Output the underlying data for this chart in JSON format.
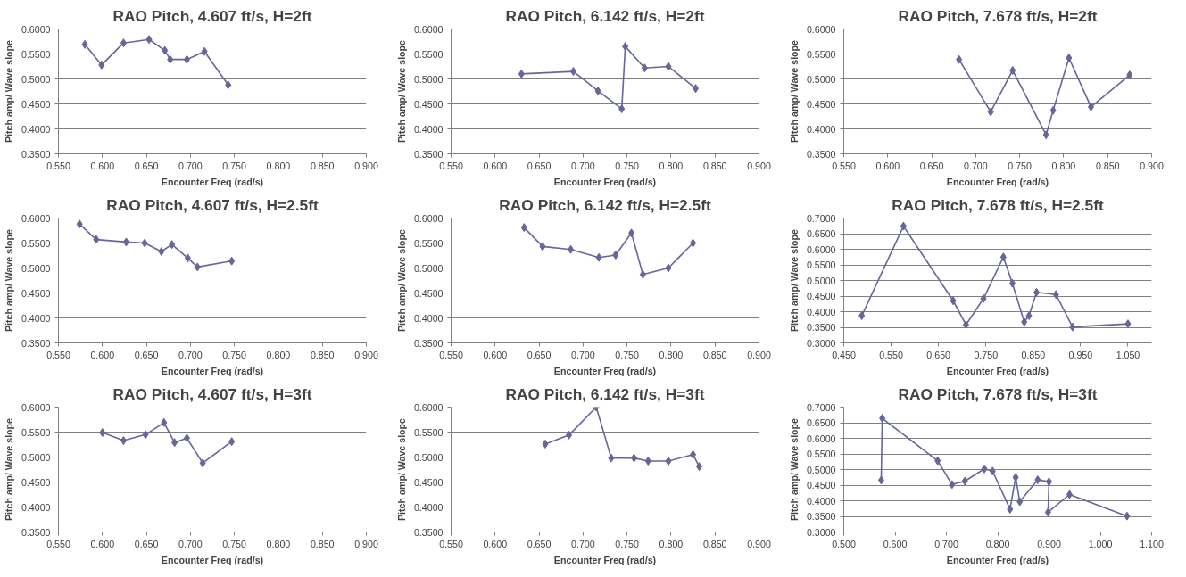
{
  "chart_data": [
    {
      "type": "line",
      "title": "RAO Pitch, 4.607 ft/s, H=2ft",
      "xlabel": "Encounter Freq (rad/s)",
      "ylabel": "Pitch amp/ Wave slope",
      "marker": "diamond",
      "grid": "y",
      "xlim": [
        0.55,
        0.9
      ],
      "ylim": [
        0.35,
        0.6
      ],
      "xticks": [
        {
          "value": 0.55,
          "label": "0.550"
        },
        {
          "value": 0.6,
          "label": "0.600"
        },
        {
          "value": 0.65,
          "label": "0.650"
        },
        {
          "value": 0.7,
          "label": "0.700"
        },
        {
          "value": 0.75,
          "label": "0.750"
        },
        {
          "value": 0.8,
          "label": "0.800"
        },
        {
          "value": 0.85,
          "label": "0.850"
        },
        {
          "value": 0.9,
          "label": "0.900"
        }
      ],
      "yticks": [
        {
          "value": 0.35,
          "label": "0.3500"
        },
        {
          "value": 0.4,
          "label": "0.4000"
        },
        {
          "value": 0.45,
          "label": "0.4500"
        },
        {
          "value": 0.5,
          "label": "0.5000"
        },
        {
          "value": 0.55,
          "label": "0.5500"
        },
        {
          "value": 0.6,
          "label": "0.6000"
        }
      ],
      "x": [
        0.58,
        0.599,
        0.624,
        0.653,
        0.671,
        0.677,
        0.696,
        0.716,
        0.743
      ],
      "series": [
        {
          "color": "#666699",
          "values": [
            0.569,
            0.528,
            0.572,
            0.579,
            0.557,
            0.539,
            0.539,
            0.555,
            0.488
          ]
        }
      ]
    },
    {
      "type": "line",
      "title": "RAO Pitch, 6.142 ft/s, H=2ft",
      "xlabel": "Encounter Freq (rad/s)",
      "ylabel": "Pitch amp/ Wave slope",
      "marker": "diamond",
      "grid": "y",
      "xlim": [
        0.55,
        0.9
      ],
      "ylim": [
        0.35,
        0.6
      ],
      "xticks": [
        {
          "value": 0.55,
          "label": "0.550"
        },
        {
          "value": 0.6,
          "label": "0.600"
        },
        {
          "value": 0.65,
          "label": "0.650"
        },
        {
          "value": 0.7,
          "label": "0.700"
        },
        {
          "value": 0.75,
          "label": "0.750"
        },
        {
          "value": 0.8,
          "label": "0.800"
        },
        {
          "value": 0.85,
          "label": "0.850"
        },
        {
          "value": 0.9,
          "label": "0.900"
        }
      ],
      "yticks": [
        {
          "value": 0.35,
          "label": "0.3500"
        },
        {
          "value": 0.4,
          "label": "0.4000"
        },
        {
          "value": 0.45,
          "label": "0.4500"
        },
        {
          "value": 0.5,
          "label": "0.5000"
        },
        {
          "value": 0.55,
          "label": "0.5500"
        },
        {
          "value": 0.6,
          "label": "0.6000"
        }
      ],
      "x": [
        0.63,
        0.689,
        0.717,
        0.744,
        0.748,
        0.77,
        0.797,
        0.828
      ],
      "series": [
        {
          "color": "#666699",
          "values": [
            0.51,
            0.515,
            0.476,
            0.44,
            0.565,
            0.522,
            0.525,
            0.481
          ]
        }
      ]
    },
    {
      "type": "line",
      "title": "RAO Pitch, 7.678 ft/s, H=2ft",
      "xlabel": "Encounter Freq (rad/s)",
      "ylabel": "Pitch amp/ Wave slope",
      "marker": "diamond",
      "grid": "y",
      "xlim": [
        0.55,
        0.9
      ],
      "ylim": [
        0.35,
        0.6
      ],
      "xticks": [
        {
          "value": 0.55,
          "label": "0.550"
        },
        {
          "value": 0.6,
          "label": "0.600"
        },
        {
          "value": 0.65,
          "label": "0.650"
        },
        {
          "value": 0.7,
          "label": "0.700"
        },
        {
          "value": 0.75,
          "label": "0.750"
        },
        {
          "value": 0.8,
          "label": "0.800"
        },
        {
          "value": 0.85,
          "label": "0.850"
        },
        {
          "value": 0.9,
          "label": "0.900"
        }
      ],
      "yticks": [
        {
          "value": 0.35,
          "label": "0.3500"
        },
        {
          "value": 0.4,
          "label": "0.4000"
        },
        {
          "value": 0.45,
          "label": "0.4500"
        },
        {
          "value": 0.5,
          "label": "0.5000"
        },
        {
          "value": 0.55,
          "label": "0.5500"
        },
        {
          "value": 0.6,
          "label": "0.6000"
        }
      ],
      "x": [
        0.681,
        0.717,
        0.742,
        0.78,
        0.788,
        0.806,
        0.831,
        0.875
      ],
      "series": [
        {
          "color": "#666699",
          "values": [
            0.539,
            0.434,
            0.517,
            0.388,
            0.437,
            0.542,
            0.444,
            0.508
          ]
        }
      ]
    },
    {
      "type": "line",
      "title": "RAO Pitch, 4.607 ft/s, H=2.5ft",
      "xlabel": "Encounter Freq (rad/s)",
      "ylabel": "Pitch amp/ Wave slope",
      "marker": "diamond",
      "grid": "y",
      "xlim": [
        0.55,
        0.9
      ],
      "ylim": [
        0.35,
        0.6
      ],
      "xticks": [
        {
          "value": 0.55,
          "label": "0.550"
        },
        {
          "value": 0.6,
          "label": "0.600"
        },
        {
          "value": 0.65,
          "label": "0.650"
        },
        {
          "value": 0.7,
          "label": "0.700"
        },
        {
          "value": 0.75,
          "label": "0.750"
        },
        {
          "value": 0.8,
          "label": "0.800"
        },
        {
          "value": 0.85,
          "label": "0.850"
        },
        {
          "value": 0.9,
          "label": "0.900"
        }
      ],
      "yticks": [
        {
          "value": 0.35,
          "label": "0.3500"
        },
        {
          "value": 0.4,
          "label": "0.4000"
        },
        {
          "value": 0.45,
          "label": "0.4500"
        },
        {
          "value": 0.5,
          "label": "0.5000"
        },
        {
          "value": 0.55,
          "label": "0.5500"
        },
        {
          "value": 0.6,
          "label": "0.6000"
        }
      ],
      "x": [
        0.574,
        0.593,
        0.627,
        0.648,
        0.667,
        0.679,
        0.697,
        0.708,
        0.747
      ],
      "series": [
        {
          "color": "#666699",
          "values": [
            0.588,
            0.557,
            0.552,
            0.55,
            0.533,
            0.547,
            0.52,
            0.502,
            0.514
          ]
        }
      ]
    },
    {
      "type": "line",
      "title": "RAO Pitch, 6.142 ft/s, H=2.5ft",
      "xlabel": "Encounter Freq (rad/s)",
      "ylabel": "Pitch amp/ Wave slope",
      "marker": "diamond",
      "grid": "y",
      "xlim": [
        0.55,
        0.9
      ],
      "ylim": [
        0.35,
        0.6
      ],
      "xticks": [
        {
          "value": 0.55,
          "label": "0.550"
        },
        {
          "value": 0.6,
          "label": "0.600"
        },
        {
          "value": 0.65,
          "label": "0.650"
        },
        {
          "value": 0.7,
          "label": "0.700"
        },
        {
          "value": 0.75,
          "label": "0.750"
        },
        {
          "value": 0.8,
          "label": "0.800"
        },
        {
          "value": 0.85,
          "label": "0.850"
        },
        {
          "value": 0.9,
          "label": "0.900"
        }
      ],
      "yticks": [
        {
          "value": 0.35,
          "label": "0.3500"
        },
        {
          "value": 0.4,
          "label": "0.4000"
        },
        {
          "value": 0.45,
          "label": "0.4500"
        },
        {
          "value": 0.5,
          "label": "0.5000"
        },
        {
          "value": 0.55,
          "label": "0.5500"
        },
        {
          "value": 0.6,
          "label": "0.6000"
        }
      ],
      "x": [
        0.633,
        0.654,
        0.686,
        0.718,
        0.737,
        0.755,
        0.768,
        0.797,
        0.825
      ],
      "series": [
        {
          "color": "#666699",
          "values": [
            0.581,
            0.543,
            0.537,
            0.521,
            0.526,
            0.57,
            0.487,
            0.5,
            0.55
          ]
        }
      ]
    },
    {
      "type": "line",
      "title": "RAO Pitch, 7.678 ft/s, H=2.5ft",
      "xlabel": "Encounter Freq (rad/s)",
      "ylabel": "Pitch amp/ Wave slope",
      "marker": "diamond",
      "grid": "y",
      "xlim": [
        0.45,
        1.1
      ],
      "ylim": [
        0.3,
        0.7
      ],
      "xticks": [
        {
          "value": 0.45,
          "label": "0.450"
        },
        {
          "value": 0.55,
          "label": "0.550"
        },
        {
          "value": 0.65,
          "label": "0.650"
        },
        {
          "value": 0.75,
          "label": "0.750"
        },
        {
          "value": 0.85,
          "label": "0.850"
        },
        {
          "value": 0.95,
          "label": "0.950"
        },
        {
          "value": 1.05,
          "label": "1.050"
        }
      ],
      "yticks": [
        {
          "value": 0.3,
          "label": "0.3000"
        },
        {
          "value": 0.35,
          "label": "0.3500"
        },
        {
          "value": 0.4,
          "label": "0.4000"
        },
        {
          "value": 0.45,
          "label": "0.4500"
        },
        {
          "value": 0.5,
          "label": "0.5000"
        },
        {
          "value": 0.55,
          "label": "0.5500"
        },
        {
          "value": 0.6,
          "label": "0.6000"
        },
        {
          "value": 0.65,
          "label": "0.6500"
        },
        {
          "value": 0.7,
          "label": "0.7000"
        }
      ],
      "x": [
        0.488,
        0.576,
        0.681,
        0.708,
        0.745,
        0.787,
        0.806,
        0.831,
        0.841,
        0.857,
        0.898,
        0.933,
        1.05
      ],
      "series": [
        {
          "color": "#666699",
          "values": [
            0.387,
            0.674,
            0.435,
            0.358,
            0.442,
            0.575,
            0.491,
            0.367,
            0.387,
            0.462,
            0.455,
            0.351,
            0.361
          ]
        }
      ]
    },
    {
      "type": "line",
      "title": "RAO Pitch, 4.607 ft/s, H=3ft",
      "xlabel": "Encounter Freq (rad/s)",
      "ylabel": "Pitch amp/ Wave slope",
      "marker": "diamond",
      "grid": "y",
      "xlim": [
        0.55,
        0.9
      ],
      "ylim": [
        0.35,
        0.6
      ],
      "xticks": [
        {
          "value": 0.55,
          "label": "0.550"
        },
        {
          "value": 0.6,
          "label": "0.600"
        },
        {
          "value": 0.65,
          "label": "0.650"
        },
        {
          "value": 0.7,
          "label": "0.700"
        },
        {
          "value": 0.75,
          "label": "0.750"
        },
        {
          "value": 0.8,
          "label": "0.800"
        },
        {
          "value": 0.85,
          "label": "0.850"
        },
        {
          "value": 0.9,
          "label": "0.900"
        }
      ],
      "yticks": [
        {
          "value": 0.35,
          "label": "0.3500"
        },
        {
          "value": 0.4,
          "label": "0.4000"
        },
        {
          "value": 0.45,
          "label": "0.4500"
        },
        {
          "value": 0.5,
          "label": "0.5000"
        },
        {
          "value": 0.55,
          "label": "0.5500"
        },
        {
          "value": 0.6,
          "label": "0.6000"
        }
      ],
      "x": [
        0.6,
        0.624,
        0.649,
        0.67,
        0.682,
        0.696,
        0.714,
        0.747
      ],
      "series": [
        {
          "color": "#666699",
          "values": [
            0.549,
            0.533,
            0.545,
            0.569,
            0.529,
            0.538,
            0.488,
            0.531
          ]
        }
      ]
    },
    {
      "type": "line",
      "title": "RAO Pitch, 6.142 ft/s, H=3ft",
      "xlabel": "Encounter Freq (rad/s)",
      "ylabel": "Pitch amp/ Wave slope",
      "marker": "diamond",
      "grid": "y",
      "xlim": [
        0.55,
        0.9
      ],
      "ylim": [
        0.35,
        0.6
      ],
      "xticks": [
        {
          "value": 0.55,
          "label": "0.550"
        },
        {
          "value": 0.6,
          "label": "0.600"
        },
        {
          "value": 0.65,
          "label": "0.650"
        },
        {
          "value": 0.7,
          "label": "0.700"
        },
        {
          "value": 0.75,
          "label": "0.750"
        },
        {
          "value": 0.8,
          "label": "0.800"
        },
        {
          "value": 0.85,
          "label": "0.850"
        },
        {
          "value": 0.9,
          "label": "0.900"
        }
      ],
      "yticks": [
        {
          "value": 0.35,
          "label": "0.3500"
        },
        {
          "value": 0.4,
          "label": "0.4000"
        },
        {
          "value": 0.45,
          "label": "0.4500"
        },
        {
          "value": 0.5,
          "label": "0.5000"
        },
        {
          "value": 0.55,
          "label": "0.5500"
        },
        {
          "value": 0.6,
          "label": "0.6000"
        }
      ],
      "x": [
        0.657,
        0.684,
        0.715,
        0.732,
        0.758,
        0.774,
        0.797,
        0.825,
        0.832
      ],
      "series": [
        {
          "color": "#666699",
          "values": [
            0.526,
            0.544,
            0.6,
            0.498,
            0.498,
            0.492,
            0.492,
            0.505,
            0.481
          ]
        }
      ]
    },
    {
      "type": "line",
      "title": "RAO Pitch, 7.678 ft/s, H=3ft",
      "xlabel": "Encounter Freq (rad/s)",
      "ylabel": "Pitch amp/ Wave slope",
      "marker": "diamond",
      "grid": "y",
      "xlim": [
        0.5,
        1.1
      ],
      "ylim": [
        0.3,
        0.7
      ],
      "xticks": [
        {
          "value": 0.5,
          "label": "0.500"
        },
        {
          "value": 0.6,
          "label": "0.600"
        },
        {
          "value": 0.7,
          "label": "0.700"
        },
        {
          "value": 0.8,
          "label": "0.800"
        },
        {
          "value": 0.9,
          "label": "0.900"
        },
        {
          "value": 1.0,
          "label": "1.000"
        },
        {
          "value": 1.1,
          "label": "1.100"
        }
      ],
      "yticks": [
        {
          "value": 0.3,
          "label": "0.3000"
        },
        {
          "value": 0.35,
          "label": "0.3500"
        },
        {
          "value": 0.4,
          "label": "0.4000"
        },
        {
          "value": 0.45,
          "label": "0.4500"
        },
        {
          "value": 0.5,
          "label": "0.5000"
        },
        {
          "value": 0.55,
          "label": "0.5500"
        },
        {
          "value": 0.6,
          "label": "0.6000"
        },
        {
          "value": 0.65,
          "label": "0.6500"
        },
        {
          "value": 0.7,
          "label": "0.7000"
        }
      ],
      "x": [
        0.573,
        0.575,
        0.683,
        0.711,
        0.736,
        0.774,
        0.79,
        0.824,
        0.835,
        0.843,
        0.878,
        0.9,
        0.898,
        0.94,
        1.052
      ],
      "series": [
        {
          "color": "#666699",
          "values": [
            0.466,
            0.664,
            0.528,
            0.452,
            0.463,
            0.502,
            0.495,
            0.373,
            0.475,
            0.397,
            0.467,
            0.461,
            0.363,
            0.42,
            0.351
          ]
        }
      ]
    }
  ]
}
